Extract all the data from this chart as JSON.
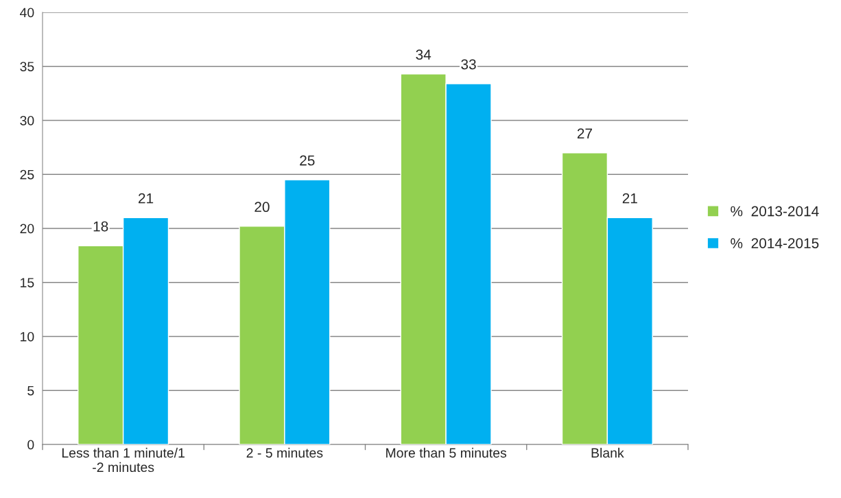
{
  "chart_data": {
    "type": "bar",
    "categories": [
      "Less than 1 minute/1\n-2 minutes",
      "2 - 5 minutes",
      "More than 5 minutes",
      "Blank"
    ],
    "series": [
      {
        "name": "%  2013-2014",
        "color": "#92d050",
        "values": [
          18.4,
          20.2,
          34.3,
          27
        ],
        "value_labels": [
          "18",
          "20",
          "34",
          "27"
        ]
      },
      {
        "name": "%  2014-2015",
        "color": "#00b0f0",
        "values": [
          21,
          24.5,
          33.4,
          21
        ],
        "value_labels": [
          "21",
          "25",
          "33",
          "21"
        ]
      }
    ],
    "ylim": [
      0,
      40
    ],
    "yticks": [
      0,
      5,
      10,
      15,
      20,
      25,
      30,
      35,
      40
    ],
    "grid": "y",
    "legend": "right"
  }
}
